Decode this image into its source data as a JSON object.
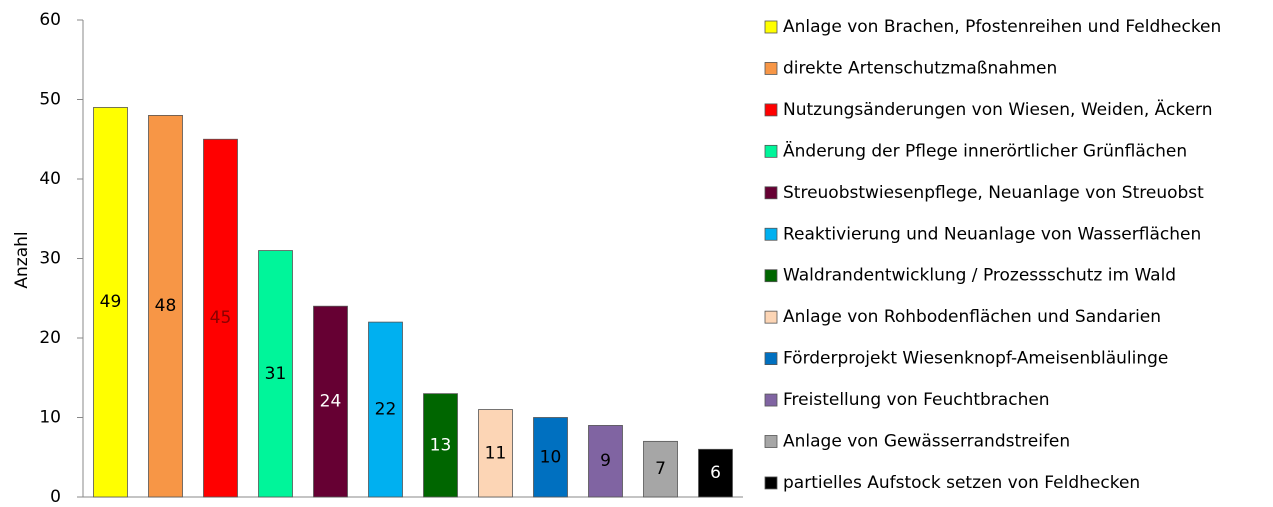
{
  "chart_data": {
    "type": "bar",
    "y_label": "Anzahl",
    "categories": [
      "Anlage von Brachen, Pfostenreihen und Feldhecken",
      "direkte Artenschutzmaßnahmen",
      "Nutzungsänderungen von Wiesen, Weiden, Äckern",
      "Änderung der Pflege innerörtlicher Grünflächen",
      "Streuobstwiesenpflege, Neuanlage von Streuobst",
      "Reaktivierung und Neuanlage von Wasserflächen",
      "Waldrandentwicklung / Prozessschutz im Wald",
      "Anlage von Rohbodenflächen und Sandarien",
      "Förderprojekt Wiesenknopf-Ameisenbläulinge",
      "Freistellung von Feuchtbrachen",
      "Anlage von Gewässerrandstreifen",
      "partielles Aufstock setzen von Feldhecken"
    ],
    "values": [
      49,
      48,
      45,
      31,
      24,
      22,
      13,
      11,
      10,
      9,
      7,
      6
    ],
    "colors": [
      "#ffff00",
      "#f79646",
      "#ff0000",
      "#00f59a",
      "#660033",
      "#00b0f0",
      "#006600",
      "#fcd5b5",
      "#0070c0",
      "#8064a2",
      "#a6a6a6",
      "#000000"
    ],
    "label_colors": [
      "#000000",
      "#000000",
      "#8b0000",
      "#000000",
      "#ffffff",
      "#000000",
      "#ffffff",
      "#000000",
      "#000000",
      "#000000",
      "#000000",
      "#ffffff"
    ],
    "ylim": [
      0,
      60
    ],
    "yticks": [
      0,
      10,
      20,
      30,
      40,
      50,
      60
    ],
    "grid": false,
    "legend": "right"
  }
}
